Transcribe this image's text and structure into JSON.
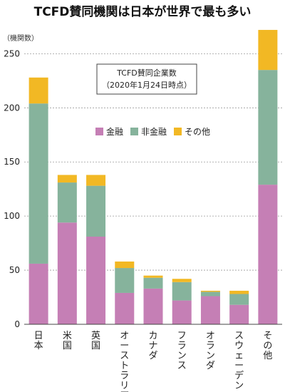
{
  "chart_data": {
    "type": "bar",
    "stacked": true,
    "title": "TCFD賛同機関は日本が世界で最も多い",
    "ylabel": "（機関数）",
    "note_lines": [
      "TCFD賛同企業数",
      "（2020年1月24日時点）"
    ],
    "ylim": [
      0,
      270
    ],
    "yticks": [
      0,
      50,
      100,
      150,
      200,
      250
    ],
    "grid": true,
    "legend_position": "top-center",
    "categories": [
      "日本",
      "米国",
      "英国",
      "オーストラリア",
      "カナダ",
      "フランス",
      "オランダ",
      "スウェーデン",
      "その他"
    ],
    "series": [
      {
        "name": "金融",
        "color": "#c57fb5",
        "values": [
          56,
          94,
          81,
          29,
          33,
          22,
          26,
          18,
          129
        ]
      },
      {
        "name": "非金融",
        "color": "#86b39c",
        "values": [
          148,
          37,
          47,
          23,
          10,
          17,
          4,
          10,
          106
        ]
      },
      {
        "name": "その他",
        "color": "#f2b824",
        "values": [
          24,
          7,
          10,
          6,
          2,
          3,
          1,
          3,
          37
        ]
      }
    ]
  }
}
